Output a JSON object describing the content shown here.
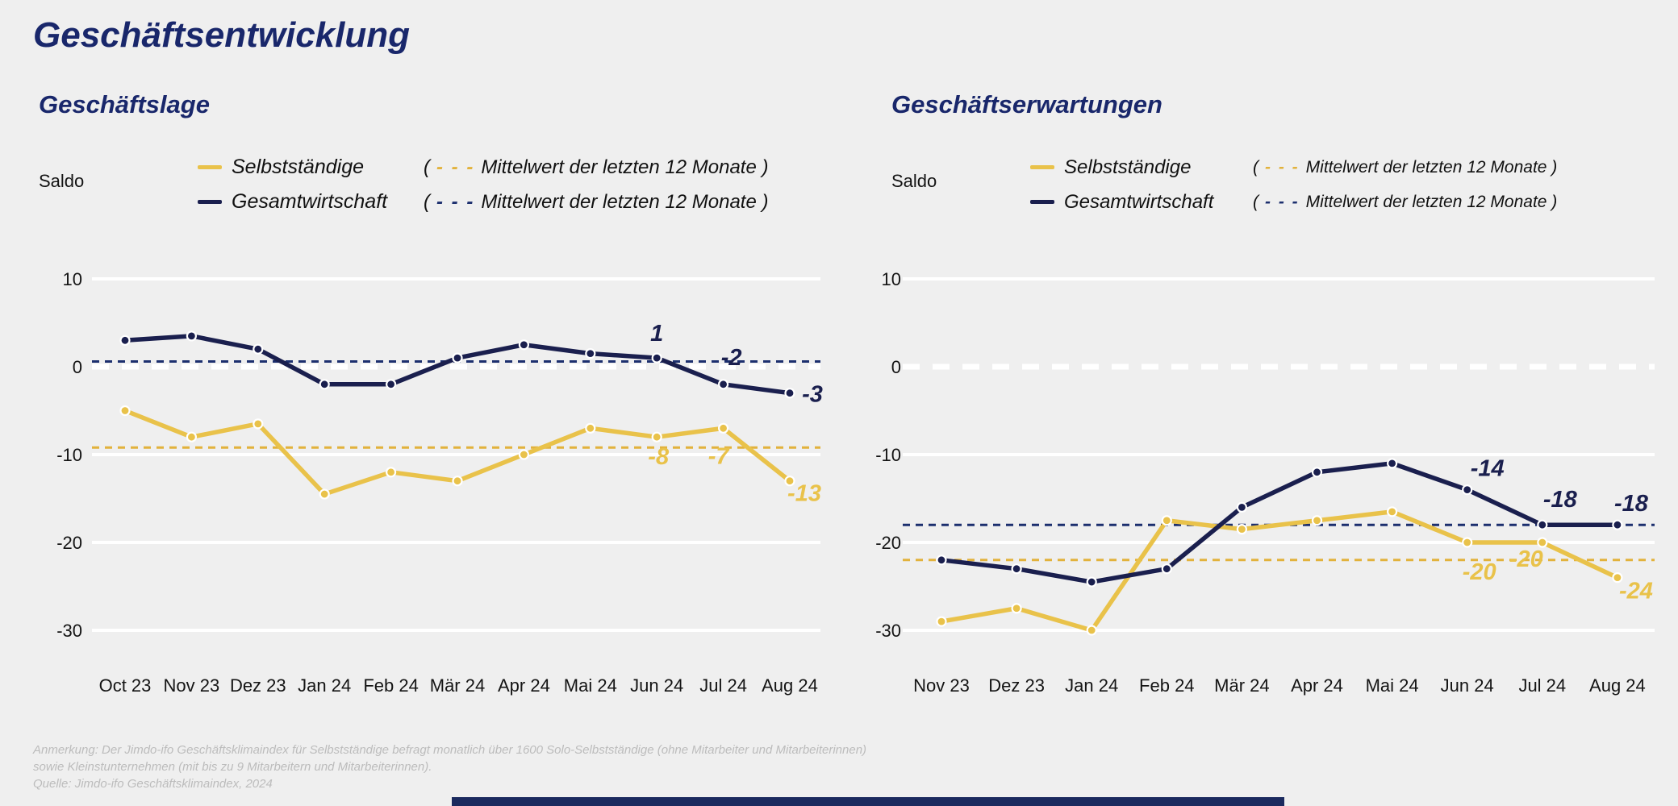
{
  "title": "Geschäftsentwicklung",
  "panels": [
    {
      "subtitle": "Geschäftslage",
      "saldo_label": "Saldo"
    },
    {
      "subtitle": "Geschäftserwartungen",
      "saldo_label": "Saldo"
    }
  ],
  "legend_note": {
    "open": "(",
    "dashes": "- - -",
    "text": "Mittelwert der letzten 12 Monate )"
  },
  "footnotes": {
    "anmerkung_line1": "Anmerkung: Der Jimdo-ifo Geschäftsklimaindex für Selbstständige befragt monatlich über 1600 Solo-Selbstständige (ohne Mitarbeiter und Mitarbeiterinnen)",
    "anmerkung_line2": "sowie Kleinstunternehmen (mit bis zu 9 Mitarbeitern und Mitarbeiterinnen).",
    "quelle": "Quelle: Jimdo-ifo Geschäftsklimaindex, 2024"
  },
  "colors": {
    "background": "#efefef",
    "grid": "#ffffff",
    "title_navy": "#19276b",
    "navy": "#1a1f4e",
    "gold": "#e9c24a",
    "navy_dash": "#1c2f6e",
    "gold_dash": "#e2b23c",
    "footnote_gray": "#bcbcbc",
    "bottom_bar": "#1b2a5e",
    "axis_text": "#141414"
  },
  "chart_data": [
    {
      "type": "line",
      "title": "Geschäftslage",
      "ylabel": "Saldo",
      "categories": [
        "Oct 23",
        "Nov 23",
        "Dez 23",
        "Jan 24",
        "Feb 24",
        "Mär 24",
        "Apr 24",
        "Mai 24",
        "Jun 24",
        "Jul 24",
        "Aug 24"
      ],
      "yticks": [
        10,
        0,
        -10,
        -20,
        -30
      ],
      "ylim": [
        12,
        -33
      ],
      "grid": true,
      "legend_position": "top",
      "series": [
        {
          "name": "Selbstständige",
          "color": "#e9c24a",
          "dash_color": "#e2b23c",
          "values": [
            -5,
            -8,
            -6.5,
            -14.5,
            -12,
            -13,
            -10,
            -7,
            -8,
            -7,
            -13
          ],
          "mean_12m": -9.2,
          "point_labels": [
            {
              "index": 8,
              "text": "-8"
            },
            {
              "index": 9,
              "text": "-7"
            },
            {
              "index": 10,
              "text": "-13"
            }
          ]
        },
        {
          "name": "Gesamtwirtschaft",
          "color": "#1a1f4e",
          "dash_color": "#1c2f6e",
          "values": [
            3,
            3.5,
            2,
            -2,
            -2,
            1,
            2.5,
            1.5,
            1,
            -2,
            -3
          ],
          "mean_12m": 0.6,
          "point_labels": [
            {
              "index": 8,
              "text": "1"
            },
            {
              "index": 9,
              "text": "-2"
            },
            {
              "index": 10,
              "text": "-3"
            }
          ]
        }
      ]
    },
    {
      "type": "line",
      "title": "Geschäftserwartungen",
      "ylabel": "Saldo",
      "categories": [
        "Nov 23",
        "Dez 23",
        "Jan 24",
        "Feb 24",
        "Mär 24",
        "Apr 24",
        "Mai 24",
        "Jun 24",
        "Jul 24",
        "Aug 24"
      ],
      "yticks": [
        10,
        0,
        -10,
        -20,
        -30
      ],
      "ylim": [
        12,
        -33
      ],
      "grid": true,
      "legend_position": "top",
      "series": [
        {
          "name": "Selbstständige",
          "color": "#e9c24a",
          "dash_color": "#e2b23c",
          "values": [
            -29,
            -27.5,
            -30,
            -17.5,
            -18.5,
            -17.5,
            -16.5,
            -20,
            -20,
            -24
          ],
          "mean_12m": -22,
          "point_labels": [
            {
              "index": 7,
              "text": "-20"
            },
            {
              "index": 8,
              "text": "-20"
            },
            {
              "index": 9,
              "text": "-24"
            }
          ]
        },
        {
          "name": "Gesamtwirtschaft",
          "color": "#1a1f4e",
          "dash_color": "#1c2f6e",
          "values": [
            -22,
            -23,
            -24.5,
            -23,
            -16,
            -12,
            -11,
            -14,
            -18,
            -18
          ],
          "mean_12m": -18,
          "point_labels": [
            {
              "index": 7,
              "text": "-14"
            },
            {
              "index": 8,
              "text": "-18"
            },
            {
              "index": 9,
              "text": "-18"
            }
          ]
        }
      ]
    }
  ]
}
